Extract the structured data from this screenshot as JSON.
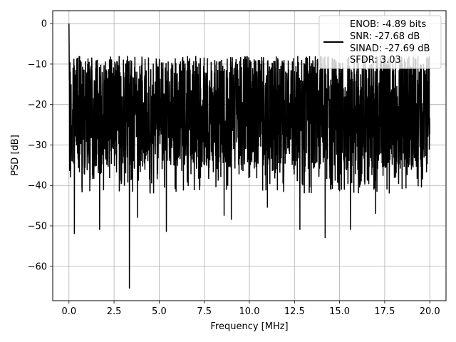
{
  "chart_data": {
    "type": "line",
    "xlabel": "Frequency [MHz]",
    "ylabel": "PSD [dB]",
    "xlim": [
      -0.9,
      20.9
    ],
    "ylim": [
      -68.5,
      3.2
    ],
    "xticks": [
      0.0,
      2.5,
      5.0,
      7.5,
      10.0,
      12.5,
      15.0,
      17.5,
      20.0
    ],
    "xtick_labels": [
      "0.0",
      "2.5",
      "5.0",
      "7.5",
      "10.0",
      "12.5",
      "15.0",
      "17.5",
      "20.0"
    ],
    "yticks": [
      0,
      -10,
      -20,
      -30,
      -40,
      -50,
      -60
    ],
    "ytick_labels": [
      "0",
      "−10",
      "−20",
      "−30",
      "−40",
      "−50",
      "−60"
    ],
    "grid": true,
    "legend_position": "top-right",
    "line_color": "#000000",
    "legend_lines": [
      "ENOB: -4.89 bits",
      "SNR: -27.68 dB",
      "SINAD: -27.69 dB",
      "SFDR: 3.03"
    ],
    "x_range": [
      0,
      20
    ],
    "noise_floor_band_db": [
      -36,
      -12
    ],
    "peak": {
      "x": 0.0,
      "y": 0.0
    },
    "notable_minima": [
      {
        "x": 0.3,
        "y": -52
      },
      {
        "x": 1.7,
        "y": -51
      },
      {
        "x": 3.35,
        "y": -65.5
      },
      {
        "x": 3.8,
        "y": -48
      },
      {
        "x": 5.4,
        "y": -51.5
      },
      {
        "x": 8.6,
        "y": -47.5
      },
      {
        "x": 9.0,
        "y": -48.5
      },
      {
        "x": 11.0,
        "y": -45.5
      },
      {
        "x": 12.8,
        "y": -51
      },
      {
        "x": 14.2,
        "y": -53
      },
      {
        "x": 15.6,
        "y": -51
      },
      {
        "x": 17.0,
        "y": -47
      }
    ]
  }
}
